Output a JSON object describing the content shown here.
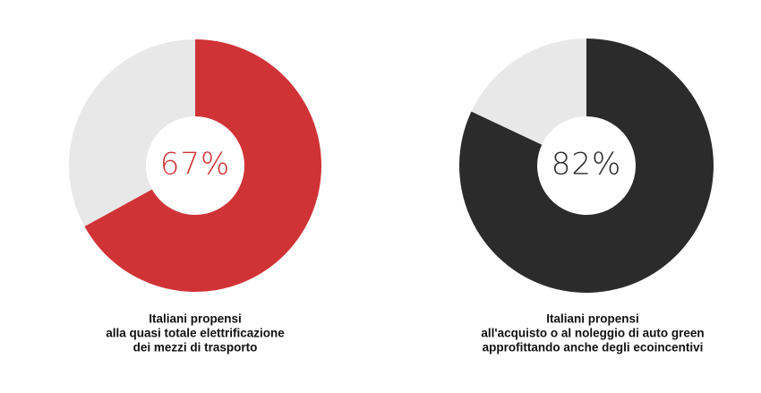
{
  "chart_data": [
    {
      "type": "donut",
      "values": [
        67,
        33
      ],
      "value_labels": [
        "67%",
        null
      ],
      "colors": [
        "#d03336",
        "#e8e8e8"
      ],
      "caption": [
        "Italiani propensi",
        "alla quasi totale elettrificazione",
        "dei mezzi di trasporto"
      ]
    },
    {
      "type": "donut",
      "values": [
        82,
        18
      ],
      "value_labels": [
        "82%",
        null
      ],
      "colors": [
        "#2b2b2b",
        "#e8e8e8"
      ],
      "caption": [
        "Italiani propensi",
        "all'acquisto o al noleggio di auto green",
        "approfittando anche degli ecoincentivi"
      ]
    }
  ]
}
